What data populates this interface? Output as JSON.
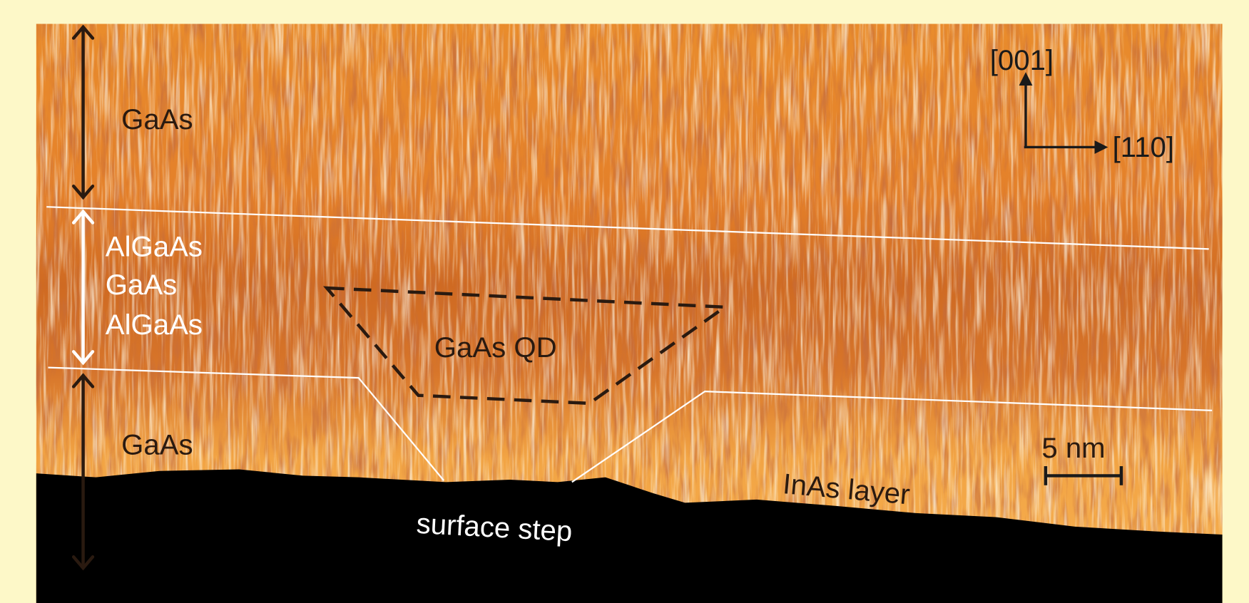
{
  "labels": {
    "top_layer": "GaAs",
    "barrier": [
      "AlGaAs",
      "GaAs",
      "AlGaAs"
    ],
    "quantum_dot": "GaAs QD",
    "bottom_layer": "GaAs",
    "surface_step": "surface step",
    "inas_layer": "InAs layer"
  },
  "scale_bar": "5 nm",
  "axes": {
    "vertical": "[001]",
    "horizontal": "[110]"
  }
}
